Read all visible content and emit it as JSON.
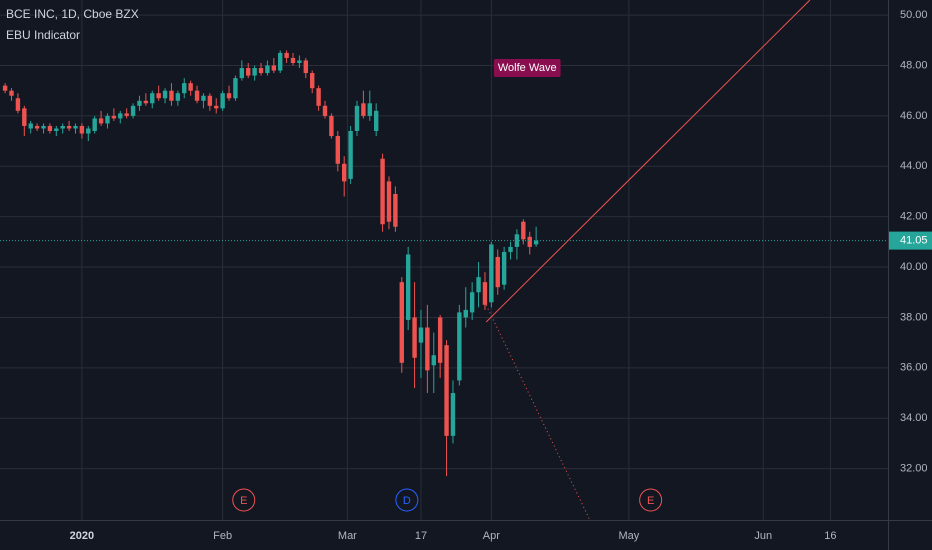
{
  "chart_data": {
    "type": "candlestick",
    "title": "BCE INC, 1D, Cboe BZX",
    "subtitle": "EBU Indicator",
    "up_color": "#26a69a",
    "down_color": "#ef5350",
    "open": [
      47.2,
      47.0,
      46.7,
      46.3,
      45.5,
      45.6,
      45.5,
      45.6,
      45.4,
      45.5,
      45.6,
      45.5,
      45.6,
      45.3,
      45.4,
      45.9,
      45.7,
      46.0,
      45.9,
      46.1,
      46.0,
      46.4,
      46.6,
      46.5,
      46.9,
      46.7,
      47.0,
      46.6,
      46.9,
      47.3,
      47.0,
      46.6,
      46.8,
      46.4,
      46.3,
      46.9,
      46.7,
      47.5,
      47.9,
      47.6,
      47.9,
      47.7,
      48.0,
      47.8,
      48.5,
      48.3,
      48.1,
      48.2,
      47.7,
      47.1,
      46.4,
      46.0,
      45.2,
      44.1,
      43.5,
      45.4,
      46.5,
      46.0,
      45.4,
      44.3,
      43.4,
      42.9,
      39.4,
      37.9,
      38.0,
      37.0,
      37.6,
      36.1,
      38.0,
      36.9,
      33.3,
      35.5,
      38.0,
      38.2,
      39.0,
      39.4,
      38.6,
      40.4,
      39.3,
      40.6,
      40.8,
      41.8,
      41.2,
      40.9
    ],
    "high": [
      47.3,
      47.1,
      46.9,
      46.4,
      45.8,
      45.7,
      45.7,
      45.7,
      45.6,
      45.7,
      45.8,
      45.7,
      45.7,
      45.6,
      46.0,
      46.2,
      46.1,
      46.3,
      46.2,
      46.3,
      46.5,
      46.8,
      46.9,
      47.0,
      47.2,
      47.1,
      47.3,
      47.0,
      47.5,
      47.4,
      47.2,
      46.9,
      46.9,
      46.7,
      47.0,
      47.2,
      47.6,
      48.2,
      48.1,
      48.0,
      48.1,
      48.2,
      48.3,
      48.6,
      48.6,
      48.5,
      48.4,
      48.3,
      47.8,
      47.2,
      46.6,
      46.1,
      45.4,
      44.4,
      45.6,
      46.6,
      47.0,
      47.0,
      46.5,
      44.5,
      43.6,
      43.2,
      39.6,
      40.8,
      39.4,
      38.3,
      38.5,
      37.4,
      38.1,
      37.1,
      35.5,
      38.5,
      39.2,
      39.4,
      40.2,
      39.8,
      41.0,
      40.7,
      40.8,
      41.0,
      41.5,
      41.9,
      41.4,
      41.6
    ],
    "low": [
      46.9,
      46.6,
      46.1,
      45.2,
      45.3,
      45.4,
      45.3,
      45.3,
      45.2,
      45.3,
      45.4,
      45.3,
      45.1,
      45.0,
      45.3,
      45.6,
      45.5,
      45.8,
      45.7,
      45.9,
      45.9,
      46.2,
      46.4,
      46.3,
      46.6,
      46.5,
      46.4,
      46.4,
      46.7,
      46.8,
      46.5,
      46.3,
      46.2,
      46.1,
      46.2,
      46.6,
      46.6,
      47.4,
      47.5,
      47.4,
      47.6,
      47.6,
      47.7,
      47.7,
      48.1,
      48.0,
      47.9,
      47.5,
      46.9,
      46.2,
      45.9,
      45.1,
      43.8,
      42.8,
      43.3,
      45.2,
      45.9,
      45.8,
      45.2,
      41.4,
      41.5,
      41.4,
      35.8,
      37.5,
      35.2,
      35.6,
      35.0,
      35.0,
      35.6,
      31.7,
      33.0,
      35.3,
      37.6,
      37.9,
      38.4,
      38.3,
      38.4,
      38.9,
      39.1,
      40.3,
      40.3,
      40.9,
      40.5,
      40.8
    ],
    "close": [
      47.0,
      46.8,
      46.2,
      45.6,
      45.7,
      45.5,
      45.6,
      45.4,
      45.5,
      45.6,
      45.5,
      45.6,
      45.3,
      45.5,
      45.9,
      45.7,
      46.0,
      45.9,
      46.1,
      46.0,
      46.4,
      46.6,
      46.5,
      46.9,
      46.7,
      47.0,
      46.6,
      46.9,
      47.3,
      47.0,
      46.6,
      46.8,
      46.4,
      46.3,
      46.9,
      46.7,
      47.5,
      47.9,
      47.6,
      47.9,
      47.7,
      48.0,
      47.8,
      48.5,
      48.3,
      48.1,
      48.2,
      47.7,
      47.1,
      46.4,
      46.0,
      45.2,
      44.1,
      43.4,
      45.4,
      46.4,
      46.0,
      46.5,
      46.2,
      41.7,
      41.8,
      41.6,
      36.2,
      40.5,
      36.4,
      37.6,
      35.9,
      36.5,
      36.2,
      33.3,
      35.0,
      38.2,
      38.3,
      39.0,
      39.6,
      38.5,
      40.9,
      39.2,
      40.6,
      40.8,
      41.3,
      41.1,
      40.8,
      41.05
    ],
    "last_price": 41.05,
    "xlim": [
      -0.8,
      138
    ],
    "xticks": [
      {
        "value": 12,
        "label": "2020"
      },
      {
        "value": 34,
        "label": "Feb"
      },
      {
        "value": 53.5,
        "label": "Mar"
      },
      {
        "value": 65,
        "label": "17"
      },
      {
        "value": 76,
        "label": "Apr"
      },
      {
        "value": 97.5,
        "label": "May"
      },
      {
        "value": 118.5,
        "label": "Jun"
      },
      {
        "value": 129,
        "label": "16"
      }
    ],
    "ylim": [
      29.96,
      50.6
    ],
    "yticks": [
      {
        "value": 32,
        "label": "32.00"
      },
      {
        "value": 34,
        "label": "34.00"
      },
      {
        "value": 36,
        "label": "36.00"
      },
      {
        "value": 38,
        "label": "38.00"
      },
      {
        "value": 40,
        "label": "40.00"
      },
      {
        "value": 42,
        "label": "42.00"
      },
      {
        "value": 44,
        "label": "44.00"
      },
      {
        "value": 46,
        "label": "46.00"
      },
      {
        "value": 48,
        "label": "48.00"
      },
      {
        "value": 50,
        "label": "50.00"
      }
    ],
    "grid": true,
    "annotation": "Wolfe Wave",
    "wave_color": "#ef5350",
    "wave_lines": [
      {
        "x": [
          75.2,
          125.8
        ],
        "y": [
          37.82,
          50.6
        ],
        "style": "solid"
      },
      {
        "x": [
          75.2,
          91.4
        ],
        "y": [
          38.49,
          29.96
        ],
        "style": "dotted"
      }
    ],
    "events": [
      {
        "label": "E",
        "x": 37.3,
        "color": "#ef5350"
      },
      {
        "label": "D",
        "x": 62.8,
        "color": "#2962ff"
      },
      {
        "label": "E",
        "x": 100.9,
        "color": "#ef5350"
      }
    ]
  }
}
